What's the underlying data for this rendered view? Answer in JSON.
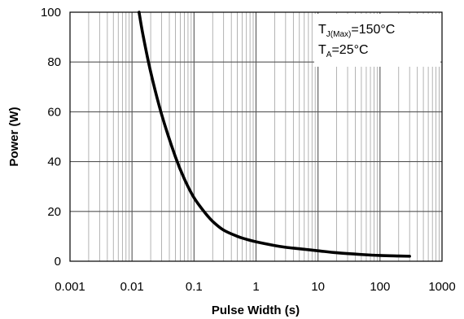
{
  "chart_data": {
    "type": "line",
    "xscale": "log",
    "xlim": [
      0.001,
      1000
    ],
    "ylim": [
      0,
      100
    ],
    "xlabel": "Pulse Width (s)",
    "ylabel": "Power (W)",
    "x_ticks": [
      "0.001",
      "0.01",
      "0.1",
      "1",
      "10",
      "100",
      "1000"
    ],
    "y_ticks": [
      "0",
      "20",
      "40",
      "60",
      "80",
      "100"
    ],
    "grid": true,
    "legend_placement": "top-right",
    "annotations": [
      {
        "main": "T",
        "sub": "J(Max)",
        "rest": "=150°C"
      },
      {
        "main": "T",
        "sub": "A",
        "rest": "=25°C"
      }
    ],
    "series": [
      {
        "color": "#000000",
        "x": [
          0.013,
          0.015,
          0.02,
          0.03,
          0.05,
          0.07,
          0.1,
          0.15,
          0.2,
          0.3,
          0.5,
          0.7,
          1,
          2,
          3,
          5,
          10,
          20,
          50,
          100,
          200,
          300
        ],
        "y": [
          100,
          91,
          76,
          59,
          42,
          33,
          25.5,
          19.5,
          16,
          12.5,
          10,
          8.8,
          7.8,
          6.3,
          5.6,
          5,
          4.2,
          3.4,
          2.7,
          2.3,
          2.1,
          2.0
        ]
      }
    ]
  }
}
